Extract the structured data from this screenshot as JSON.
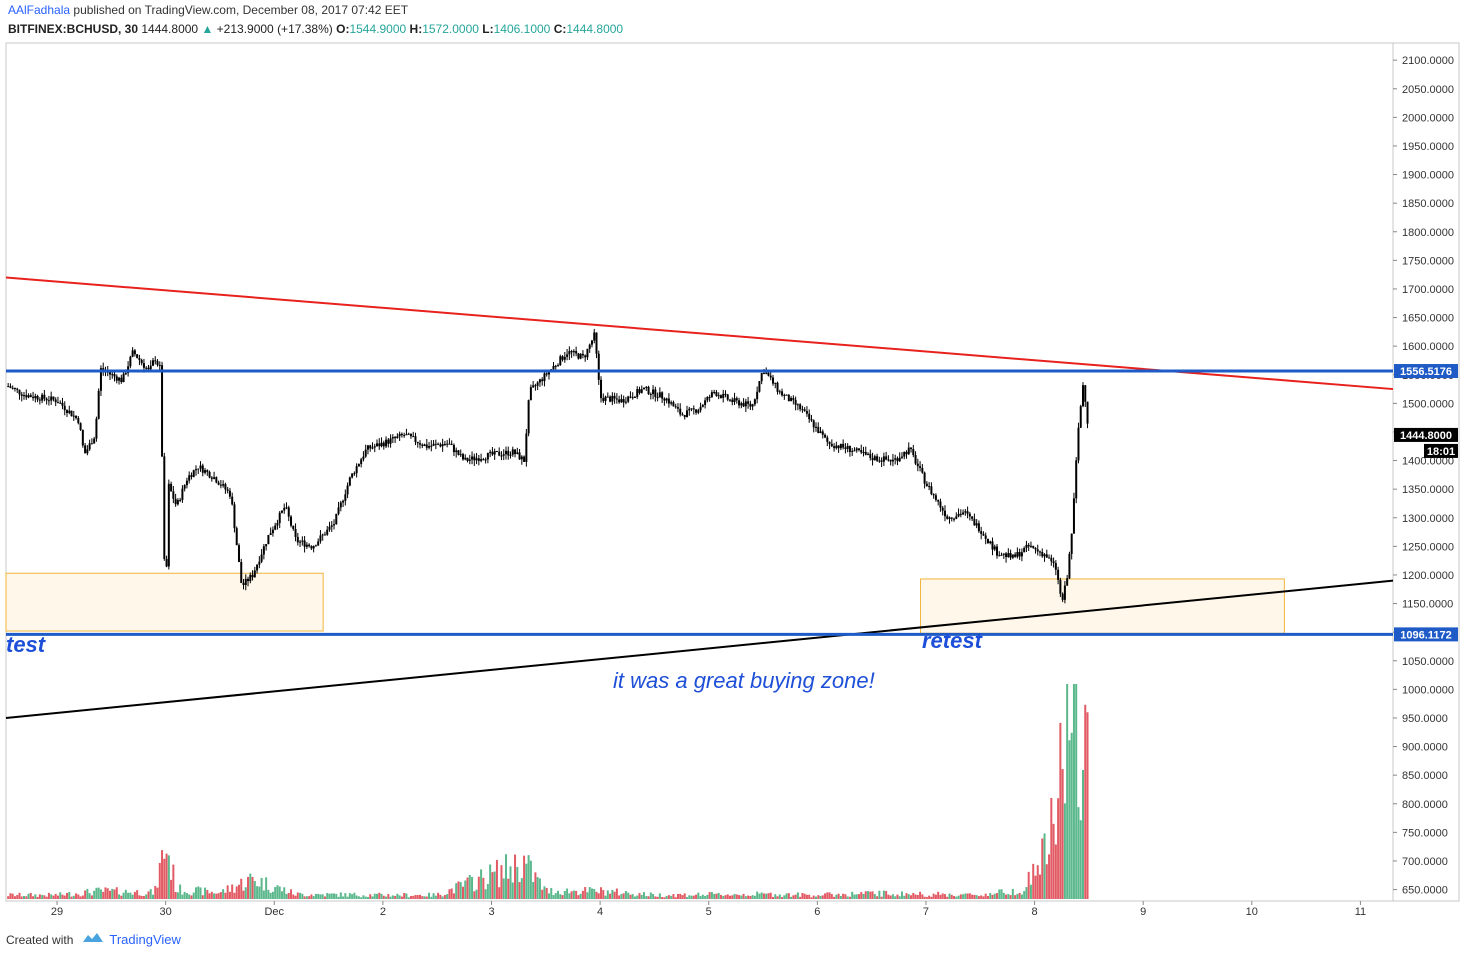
{
  "header": {
    "author": "AAlFadhala",
    "published_text": "published on TradingView.com, December 08, 2017 07:42 EET"
  },
  "infobar": {
    "symbol": "BITFINEX:BCHUSD, 30",
    "last": "1444.8000",
    "arrow": "▲",
    "change": "+213.9000 (+17.38%)",
    "open_label": "O:",
    "open": "1544.9000",
    "high_label": "H:",
    "high": "1572.0000",
    "low_label": "L:",
    "low": "1406.1000",
    "close_label": "C:",
    "close": "1444.8000"
  },
  "annotations": {
    "retest_left": "test",
    "retest_right": "retest",
    "buying_zone": "it was a great buying zone!"
  },
  "footer": {
    "created_with": "Created with",
    "brand": "TradingView"
  },
  "colors": {
    "candle": "#000000",
    "resistance_line": "#e8211d",
    "support_trend": "#000000",
    "horizontal_level": "#1e5bc6",
    "zone_fill": "#fff8ea",
    "zone_border": "#f2b33d",
    "volume_up": "#5bb88c",
    "volume_down": "#e25a64",
    "price_badge": "#1e5bc6"
  },
  "chart_data": {
    "type": "candlestick",
    "symbol": "BITFINEX:BCHUSD",
    "interval": "30",
    "x_tick_labels": [
      "29",
      "30",
      "Dec",
      "2",
      "3",
      "4",
      "5",
      "6",
      "7",
      "8",
      "9",
      "10",
      "11"
    ],
    "y_tick_labels": [
      "2100.0000",
      "2050.0000",
      "2000.0000",
      "1950.0000",
      "1900.0000",
      "1850.0000",
      "1800.0000",
      "1750.0000",
      "1700.0000",
      "1650.0000",
      "1600.0000",
      "1550.0000",
      "1500.0000",
      "1450.0000",
      "1400.0000",
      "1350.0000",
      "1300.0000",
      "1250.0000",
      "1200.0000",
      "1150.0000",
      "1100.0000",
      "1050.0000",
      "1000.0000",
      "950.0000",
      "900.0000",
      "850.0000",
      "800.0000",
      "750.0000",
      "700.0000",
      "650.0000"
    ],
    "y_range": [
      630,
      2130
    ],
    "x_range_days": [
      -0.47,
      12.3
    ],
    "price_path": [
      [
        -0.45,
        1530
      ],
      [
        -0.3,
        1515
      ],
      [
        0.0,
        1505
      ],
      [
        0.2,
        1470
      ],
      [
        0.25,
        1410
      ],
      [
        0.35,
        1445
      ],
      [
        0.4,
        1560
      ],
      [
        0.6,
        1540
      ],
      [
        0.7,
        1590
      ],
      [
        0.85,
        1555
      ],
      [
        0.9,
        1580
      ],
      [
        0.95,
        1560
      ],
      [
        1.0,
        1110
      ],
      [
        1.02,
        1360
      ],
      [
        1.1,
        1320
      ],
      [
        1.2,
        1370
      ],
      [
        1.3,
        1390
      ],
      [
        1.45,
        1370
      ],
      [
        1.6,
        1340
      ],
      [
        1.7,
        1180
      ],
      [
        1.8,
        1200
      ],
      [
        1.95,
        1270
      ],
      [
        2.1,
        1320
      ],
      [
        2.2,
        1260
      ],
      [
        2.35,
        1250
      ],
      [
        2.55,
        1290
      ],
      [
        2.7,
        1370
      ],
      [
        2.85,
        1420
      ],
      [
        3.0,
        1430
      ],
      [
        3.2,
        1445
      ],
      [
        3.4,
        1425
      ],
      [
        3.6,
        1430
      ],
      [
        3.75,
        1400
      ],
      [
        4.0,
        1410
      ],
      [
        4.2,
        1415
      ],
      [
        4.3,
        1400
      ],
      [
        4.35,
        1520
      ],
      [
        4.55,
        1560
      ],
      [
        4.7,
        1590
      ],
      [
        4.85,
        1580
      ],
      [
        4.95,
        1620
      ],
      [
        5.0,
        1510
      ],
      [
        5.2,
        1505
      ],
      [
        5.4,
        1525
      ],
      [
        5.6,
        1510
      ],
      [
        5.75,
        1480
      ],
      [
        5.9,
        1490
      ],
      [
        6.05,
        1520
      ],
      [
        6.2,
        1505
      ],
      [
        6.4,
        1495
      ],
      [
        6.5,
        1560
      ],
      [
        6.65,
        1520
      ],
      [
        6.85,
        1490
      ],
      [
        7.1,
        1430
      ],
      [
        7.3,
        1420
      ],
      [
        7.5,
        1405
      ],
      [
        7.7,
        1400
      ],
      [
        7.85,
        1420
      ],
      [
        8.0,
        1360
      ],
      [
        8.2,
        1300
      ],
      [
        8.35,
        1310
      ],
      [
        8.5,
        1280
      ],
      [
        8.65,
        1240
      ],
      [
        8.8,
        1230
      ],
      [
        8.95,
        1250
      ],
      [
        9.1,
        1235
      ],
      [
        9.2,
        1210
      ],
      [
        9.25,
        1150
      ],
      [
        9.3,
        1195
      ],
      [
        9.35,
        1290
      ],
      [
        9.4,
        1450
      ],
      [
        9.45,
        1540
      ],
      [
        9.5,
        1445
      ]
    ],
    "volume_path": [
      [
        0.0,
        5
      ],
      [
        0.4,
        10
      ],
      [
        0.9,
        8
      ],
      [
        1.0,
        70
      ],
      [
        1.1,
        12
      ],
      [
        1.5,
        8
      ],
      [
        1.8,
        25
      ],
      [
        2.2,
        6
      ],
      [
        3.0,
        5
      ],
      [
        3.5,
        5
      ],
      [
        4.3,
        45
      ],
      [
        4.5,
        10
      ],
      [
        5.0,
        10
      ],
      [
        5.5,
        5
      ],
      [
        6.5,
        6
      ],
      [
        7.0,
        5
      ],
      [
        7.5,
        7
      ],
      [
        8.0,
        6
      ],
      [
        8.5,
        5
      ],
      [
        8.9,
        12
      ],
      [
        9.1,
        60
      ],
      [
        9.2,
        100
      ],
      [
        9.3,
        260
      ],
      [
        9.35,
        220
      ],
      [
        9.45,
        155
      ]
    ],
    "levels": [
      {
        "name": "resistance horizontal",
        "value": 1556.5176,
        "label": "1556.5176"
      },
      {
        "name": "support horizontal",
        "value": 1096.1172,
        "label": "1096.1172"
      }
    ],
    "current_price": {
      "value": 1444.8,
      "label": "1444.8000",
      "countdown": "18:01"
    },
    "trendlines": [
      {
        "name": "descending resistance",
        "from": [
          -0.47,
          1720
        ],
        "to": [
          12.3,
          1525
        ]
      },
      {
        "name": "ascending support",
        "from": [
          -0.47,
          950
        ],
        "to": [
          12.3,
          1190
        ]
      }
    ],
    "zones": [
      {
        "name": "left retest zone",
        "x": [
          -0.47,
          2.45
        ],
        "y": [
          1102,
          1203
        ]
      },
      {
        "name": "right retest zone",
        "x": [
          7.95,
          11.3
        ],
        "y": [
          1098,
          1193
        ]
      }
    ]
  }
}
